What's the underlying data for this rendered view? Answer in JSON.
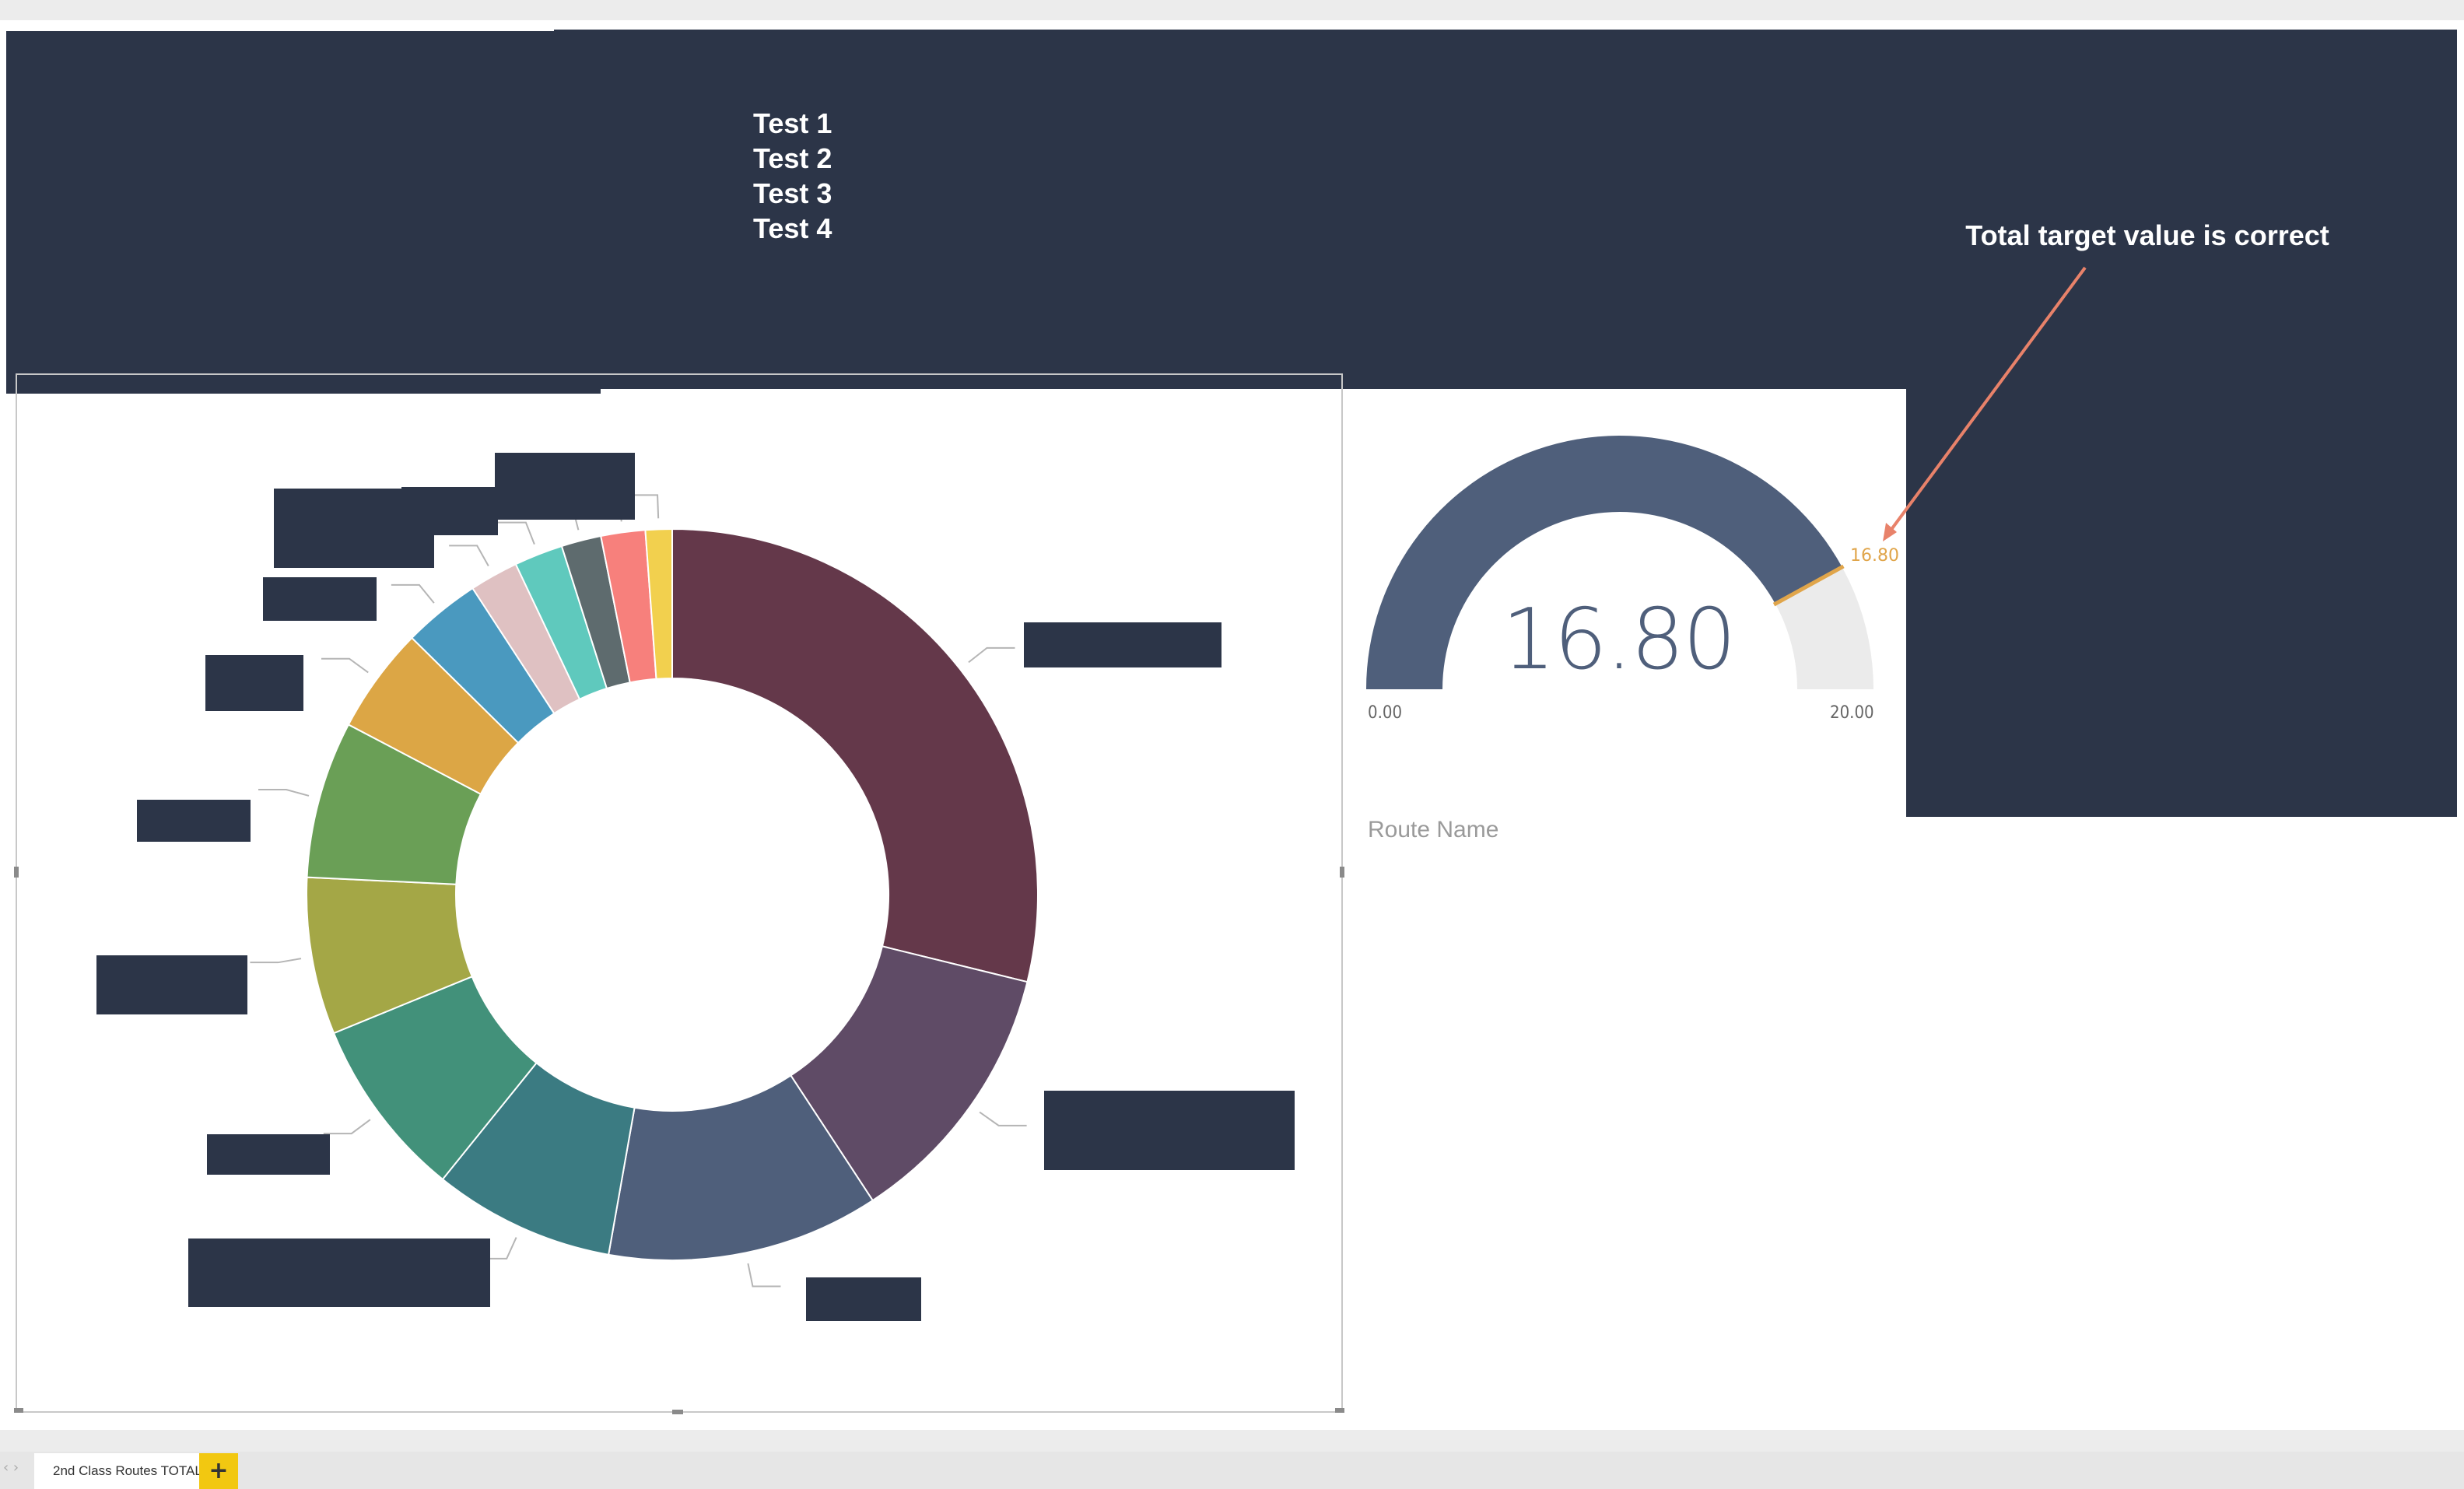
{
  "header": {
    "lines": [
      "Test 1",
      "Test 2",
      "Test 3",
      "Test 4"
    ]
  },
  "annotation": {
    "text": "Total target value is correct",
    "arrow_color": "#e8826a"
  },
  "donut": {
    "colors": [
      "#64384a",
      "#5f4b66",
      "#4f5f7b",
      "#3b7b82",
      "#42917a",
      "#a4a746",
      "#6a9f56",
      "#dca645",
      "#4a99bf",
      "#dfc1c2",
      "#5fc9bd",
      "#5e6b6e",
      "#f7807c",
      "#f2d04e"
    ],
    "values": [
      29.5,
      12.2,
      12.3,
      8.2,
      8.2,
      7.1,
      7.1,
      4.8,
      3.5,
      2.2,
      2.2,
      1.8,
      2.0,
      1.2
    ]
  },
  "gauge": {
    "value": "16.80",
    "min": "0.00",
    "max": "20.00",
    "target": "16.80",
    "value_num": 16.8,
    "min_num": 0,
    "max_num": 20,
    "fill_color": "#4f5f7b",
    "track_color": "#ebebeb",
    "target_color": "#e0a54a"
  },
  "field_label": "Route Name",
  "tabs": {
    "active": "2nd Class Routes TOTAL",
    "add": "+"
  }
}
